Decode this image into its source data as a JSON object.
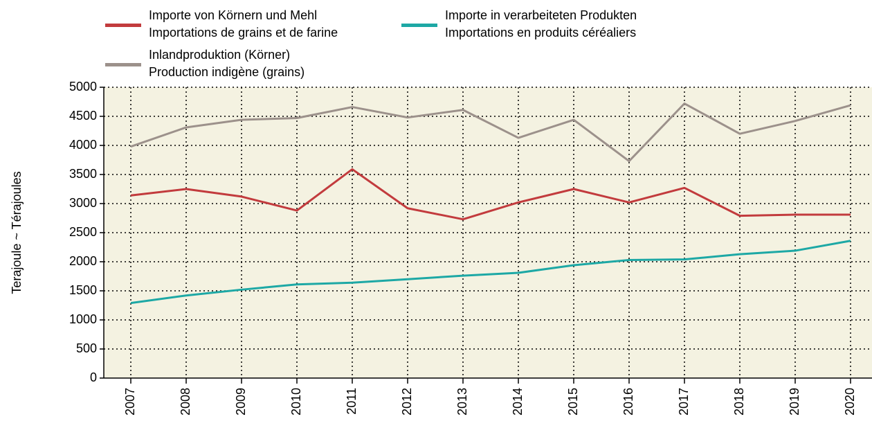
{
  "chart_data": {
    "type": "line",
    "y_label": "Terajoule   ~   Térajoules",
    "categories": [
      "2007",
      "2008",
      "2009",
      "2010",
      "2011",
      "2012",
      "2013",
      "2014",
      "2015",
      "2016",
      "2017",
      "2018",
      "2019",
      "2020"
    ],
    "series": [
      {
        "name": "Importe von Körnern und Mehl\nImportations de grains et de farine",
        "color": "#c23b3d",
        "values": [
          3140,
          3250,
          3120,
          2880,
          3590,
          2920,
          2730,
          3020,
          3250,
          3020,
          3270,
          2790,
          2810,
          2810
        ]
      },
      {
        "name": "Importe in verarbeiteten Produkten\nImportations en produits céréaliers",
        "color": "#1da8a5",
        "values": [
          1290,
          1420,
          1520,
          1610,
          1640,
          1700,
          1760,
          1810,
          1940,
          2030,
          2040,
          2130,
          2190,
          2360
        ]
      },
      {
        "name": "Inlandproduktion (Körner)\nProduction indigène (grains)",
        "color": "#9c918b",
        "values": [
          3980,
          4310,
          4440,
          4470,
          4660,
          4480,
          4610,
          4130,
          4440,
          3730,
          4720,
          4200,
          4420,
          4690
        ]
      }
    ],
    "ylim": [
      0,
      5000
    ],
    "yticks": [
      0,
      500,
      1000,
      1500,
      2000,
      2500,
      3000,
      3500,
      4000,
      4500,
      5000
    ],
    "grid": true,
    "background": "#f4f2e1"
  }
}
